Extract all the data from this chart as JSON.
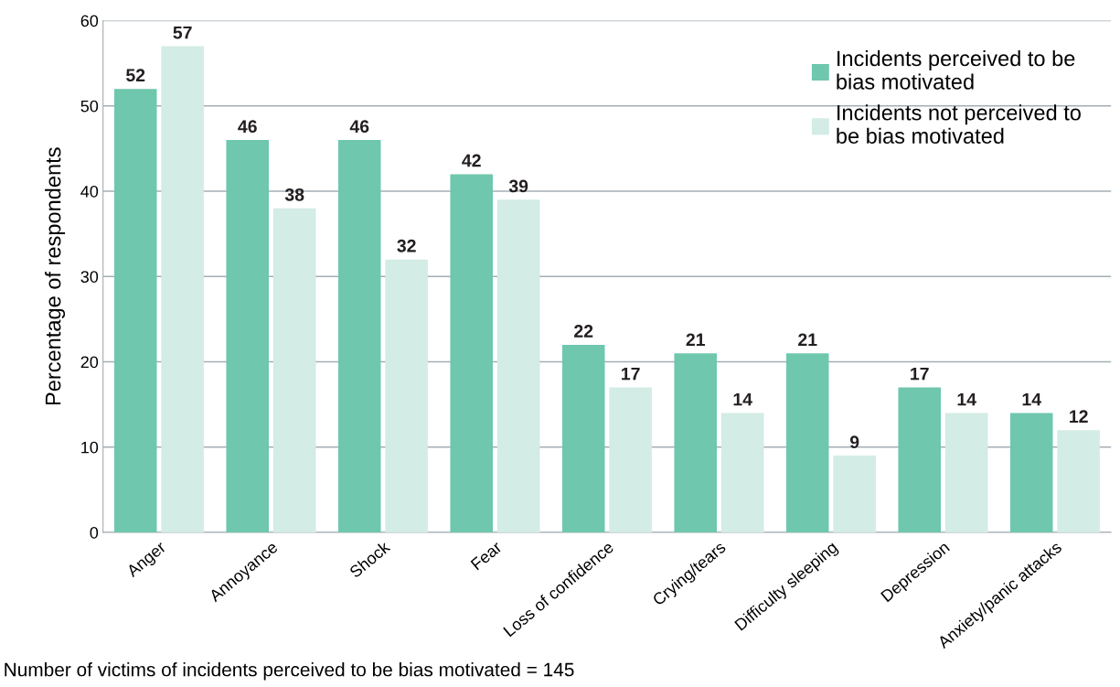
{
  "chart_data": {
    "type": "bar",
    "ylabel": "Percentage of respondents",
    "categories": [
      "Anger",
      "Annoyance",
      "Shock",
      "Fear",
      "Loss of confidence",
      "Crying/tears",
      "Difficulty sleeping",
      "Depression",
      "Anxiety/panic attacks"
    ],
    "series": [
      {
        "name": "Incidents perceived to be bias motivated",
        "color": "#6fc7ad",
        "values": [
          52,
          46,
          46,
          42,
          22,
          21,
          21,
          17,
          14
        ]
      },
      {
        "name": "Incidents not perceived to be bias motivated",
        "color": "#d3ece5",
        "values": [
          57,
          38,
          32,
          39,
          17,
          14,
          9,
          14,
          12
        ]
      }
    ],
    "ylim": [
      0,
      60
    ],
    "yticks": [
      0,
      10,
      20,
      30,
      40,
      50,
      60
    ],
    "grid": "y",
    "legend": "top right",
    "data_labels": true,
    "annotations": [
      "Number of victims of incidents perceived to be bias motivated = 145"
    ]
  }
}
